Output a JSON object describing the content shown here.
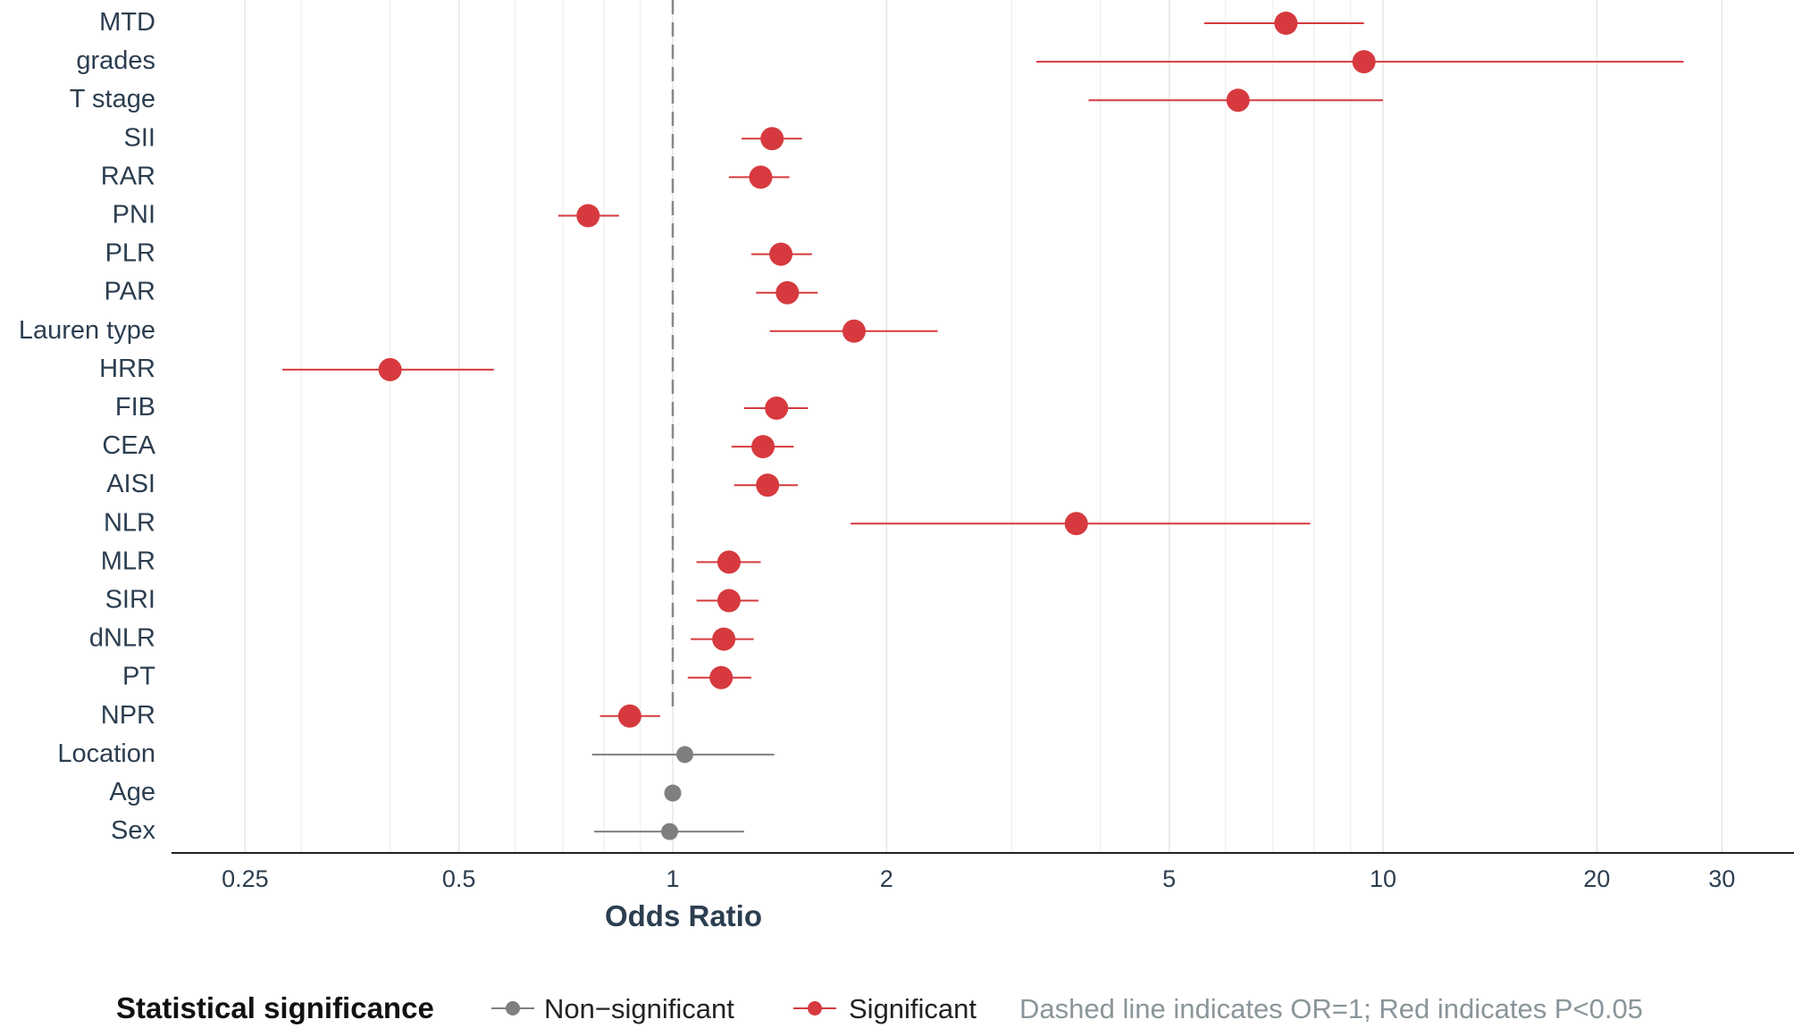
{
  "chart_data": {
    "type": "forest",
    "title": "",
    "xlabel": "Odds Ratio",
    "ylabel": "",
    "xscale": "log",
    "xlim": [
      0.2,
      38
    ],
    "xticks": [
      0.25,
      0.5,
      1,
      2,
      5,
      10,
      20,
      30
    ],
    "xtick_labels": [
      "0.25",
      "0.5",
      "1",
      "2",
      "5",
      "10",
      "20",
      "30"
    ],
    "reference_line": 1,
    "colors": {
      "significant": "#d63a3e",
      "non_significant": "#7f7f7f",
      "axis": "#222222",
      "text": "#2c3e50"
    },
    "rows": [
      {
        "label": "MTD",
        "or": 7.3,
        "lo": 5.6,
        "hi": 9.4,
        "significant": true
      },
      {
        "label": "grades",
        "or": 9.4,
        "lo": 3.25,
        "hi": 26.5,
        "significant": true
      },
      {
        "label": "T stage",
        "or": 6.25,
        "lo": 3.85,
        "hi": 10.0,
        "significant": true
      },
      {
        "label": "SII",
        "or": 1.38,
        "lo": 1.25,
        "hi": 1.52,
        "significant": true
      },
      {
        "label": "RAR",
        "or": 1.33,
        "lo": 1.2,
        "hi": 1.46,
        "significant": true
      },
      {
        "label": "PNI",
        "or": 0.76,
        "lo": 0.69,
        "hi": 0.84,
        "significant": true
      },
      {
        "label": "PLR",
        "or": 1.42,
        "lo": 1.29,
        "hi": 1.57,
        "significant": true
      },
      {
        "label": "PAR",
        "or": 1.45,
        "lo": 1.31,
        "hi": 1.6,
        "significant": true
      },
      {
        "label": "Lauren type",
        "or": 1.8,
        "lo": 1.37,
        "hi": 2.36,
        "significant": true
      },
      {
        "label": "HRR",
        "or": 0.4,
        "lo": 0.282,
        "hi": 0.56,
        "significant": true
      },
      {
        "label": "FIB",
        "or": 1.4,
        "lo": 1.26,
        "hi": 1.55,
        "significant": true
      },
      {
        "label": "CEA",
        "or": 1.34,
        "lo": 1.21,
        "hi": 1.48,
        "significant": true
      },
      {
        "label": "AISI",
        "or": 1.36,
        "lo": 1.22,
        "hi": 1.5,
        "significant": true
      },
      {
        "label": "NLR",
        "or": 3.7,
        "lo": 1.78,
        "hi": 7.9,
        "significant": true
      },
      {
        "label": "MLR",
        "or": 1.2,
        "lo": 1.08,
        "hi": 1.33,
        "significant": true
      },
      {
        "label": "SIRI",
        "or": 1.2,
        "lo": 1.08,
        "hi": 1.32,
        "significant": true
      },
      {
        "label": "dNLR",
        "or": 1.18,
        "lo": 1.06,
        "hi": 1.3,
        "significant": true
      },
      {
        "label": "PT",
        "or": 1.17,
        "lo": 1.05,
        "hi": 1.29,
        "significant": true
      },
      {
        "label": "NPR",
        "or": 0.87,
        "lo": 0.79,
        "hi": 0.96,
        "significant": true
      },
      {
        "label": "Location",
        "or": 1.04,
        "lo": 0.77,
        "hi": 1.39,
        "significant": false
      },
      {
        "label": "Age",
        "or": 1.0,
        "lo": 0.99,
        "hi": 1.01,
        "significant": false
      },
      {
        "label": "Sex",
        "or": 0.99,
        "lo": 0.775,
        "hi": 1.26,
        "significant": false
      }
    ],
    "legend": {
      "position": "bottom",
      "title": "Statistical significance",
      "entries": [
        {
          "label": "Non−significant",
          "color": "#7f7f7f"
        },
        {
          "label": "Significant",
          "color": "#d63a3e"
        }
      ],
      "note": "Dashed line indicates OR=1; Red indicates P<0.05"
    }
  }
}
